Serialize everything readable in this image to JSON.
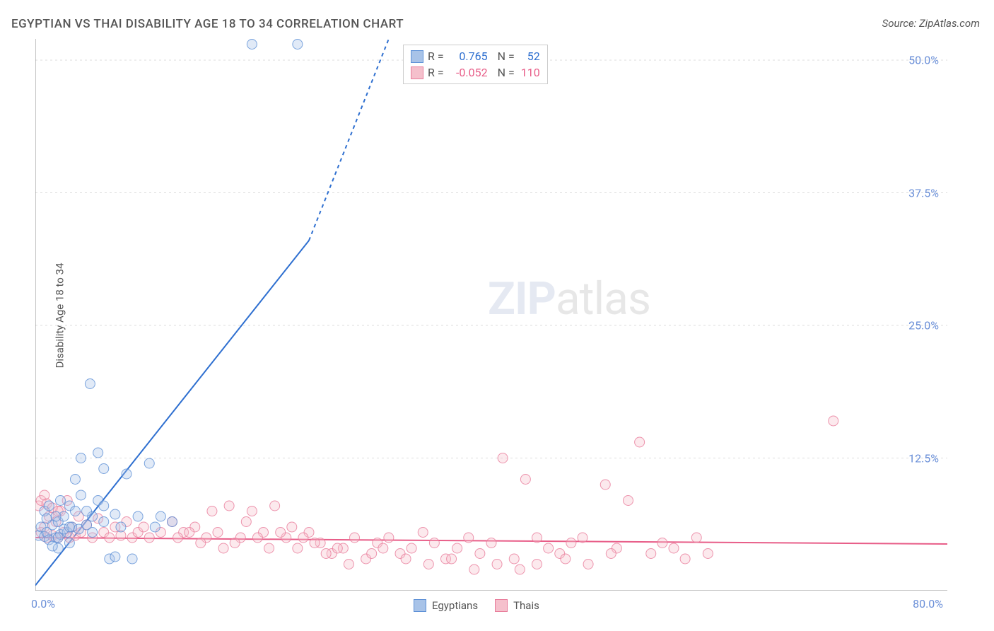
{
  "title": "EGYPTIAN VS THAI DISABILITY AGE 18 TO 34 CORRELATION CHART",
  "source": "Source: ZipAtlas.com",
  "ylabel": "Disability Age 18 to 34",
  "watermark_zip": "ZIP",
  "watermark_atlas": "atlas",
  "chart": {
    "type": "scatter",
    "xlim": [
      0,
      80
    ],
    "ylim": [
      0,
      52
    ],
    "yticks": [
      {
        "v": 12.5,
        "label": "12.5%"
      },
      {
        "v": 25.0,
        "label": "25.0%"
      },
      {
        "v": 37.5,
        "label": "37.5%"
      },
      {
        "v": 50.0,
        "label": "50.0%"
      }
    ],
    "xticks": [
      {
        "v": 0,
        "label": "0.0%"
      },
      {
        "v": 80,
        "label": "80.0%"
      }
    ],
    "xtick_minor": [
      40,
      44,
      48,
      52,
      56,
      60,
      64,
      68,
      72,
      76
    ],
    "grid_color": "#dddddd",
    "axis_color": "#888888",
    "tick_label_color": "#6a8fd8",
    "background_color": "#ffffff",
    "marker_radius": 7,
    "marker_opacity": 0.35,
    "line_width": 2,
    "series": [
      {
        "name": "Egyptians",
        "color_fill": "#a8c3e8",
        "color_stroke": "#5b8fd6",
        "line_color": "#2e6fd0",
        "r_value": "0.765",
        "n_value": "52",
        "trend": {
          "x1": 0,
          "y1": 0.5,
          "x2_solid": 24,
          "y2_solid": 33,
          "x2_dash": 31,
          "y2_dash": 52
        },
        "points": [
          [
            0.3,
            5.2
          ],
          [
            0.5,
            6.0
          ],
          [
            0.8,
            5.1
          ],
          [
            1.0,
            5.5
          ],
          [
            1.2,
            4.8
          ],
          [
            1.5,
            6.2
          ],
          [
            1.8,
            5.0
          ],
          [
            2.0,
            6.5
          ],
          [
            2.2,
            5.3
          ],
          [
            2.5,
            7.0
          ],
          [
            2.8,
            5.5
          ],
          [
            3.0,
            8.0
          ],
          [
            3.2,
            6.0
          ],
          [
            3.5,
            7.5
          ],
          [
            3.8,
            5.8
          ],
          [
            4.0,
            9.0
          ],
          [
            4.5,
            6.2
          ],
          [
            5.0,
            7.0
          ],
          [
            5.5,
            8.5
          ],
          [
            6.0,
            6.5
          ],
          [
            6.5,
            3.0
          ],
          [
            7.0,
            7.2
          ],
          [
            7.5,
            6.0
          ],
          [
            8.0,
            11.0
          ],
          [
            4.0,
            12.5
          ],
          [
            5.5,
            13.0
          ],
          [
            6.0,
            11.5
          ],
          [
            3.5,
            10.5
          ],
          [
            4.8,
            19.5
          ],
          [
            10.0,
            12.0
          ],
          [
            9.0,
            7.0
          ],
          [
            2.0,
            4.0
          ],
          [
            3.0,
            4.5
          ],
          [
            1.5,
            4.2
          ],
          [
            2.5,
            5.8
          ],
          [
            11.0,
            7.0
          ],
          [
            10.5,
            6.0
          ],
          [
            12.0,
            6.5
          ],
          [
            7.0,
            3.2
          ],
          [
            8.5,
            3.0
          ],
          [
            0.8,
            7.5
          ],
          [
            1.2,
            8.0
          ],
          [
            1.8,
            7.0
          ],
          [
            2.2,
            8.5
          ],
          [
            1.0,
            6.8
          ],
          [
            19.0,
            51.5
          ],
          [
            23.0,
            51.5
          ],
          [
            6.0,
            8.0
          ],
          [
            4.5,
            7.5
          ],
          [
            3.0,
            6.0
          ],
          [
            2.0,
            5.0
          ],
          [
            5.0,
            5.5
          ]
        ]
      },
      {
        "name": "Thais",
        "color_fill": "#f5c0cc",
        "color_stroke": "#e87b9a",
        "line_color": "#e85d88",
        "r_value": "-0.052",
        "n_value": "110",
        "trend": {
          "x1": 0,
          "y1": 5.0,
          "x2_solid": 80,
          "y2_solid": 4.4,
          "x2_dash": 80,
          "y2_dash": 4.4
        },
        "points": [
          [
            0.5,
            5.5
          ],
          [
            0.8,
            6.0
          ],
          [
            1.0,
            5.0
          ],
          [
            1.2,
            7.0
          ],
          [
            1.5,
            5.2
          ],
          [
            1.8,
            6.5
          ],
          [
            2.0,
            5.0
          ],
          [
            2.2,
            7.5
          ],
          [
            2.5,
            5.5
          ],
          [
            2.8,
            8.5
          ],
          [
            3.0,
            5.0
          ],
          [
            3.2,
            6.0
          ],
          [
            3.5,
            5.2
          ],
          [
            3.8,
            7.0
          ],
          [
            4.0,
            5.5
          ],
          [
            4.5,
            6.2
          ],
          [
            5.0,
            5.0
          ],
          [
            5.5,
            6.8
          ],
          [
            6.0,
            5.5
          ],
          [
            6.5,
            5.0
          ],
          [
            7.0,
            6.0
          ],
          [
            7.5,
            5.2
          ],
          [
            8.0,
            6.5
          ],
          [
            8.5,
            5.0
          ],
          [
            9.0,
            5.5
          ],
          [
            9.5,
            6.0
          ],
          [
            10.0,
            5.0
          ],
          [
            11.0,
            5.5
          ],
          [
            12.0,
            6.5
          ],
          [
            13.0,
            5.5
          ],
          [
            14.0,
            6.0
          ],
          [
            15.0,
            5.0
          ],
          [
            15.5,
            7.5
          ],
          [
            16.0,
            5.5
          ],
          [
            17.0,
            8.0
          ],
          [
            18.0,
            5.0
          ],
          [
            18.5,
            6.5
          ],
          [
            19.0,
            7.5
          ],
          [
            20.0,
            5.5
          ],
          [
            21.0,
            8.0
          ],
          [
            22.0,
            5.0
          ],
          [
            22.5,
            6.0
          ],
          [
            23.0,
            4.0
          ],
          [
            24.0,
            5.5
          ],
          [
            25.0,
            4.5
          ],
          [
            26.0,
            3.5
          ],
          [
            27.0,
            4.0
          ],
          [
            28.0,
            5.0
          ],
          [
            29.0,
            3.0
          ],
          [
            30.0,
            4.5
          ],
          [
            31.0,
            5.0
          ],
          [
            32.0,
            3.5
          ],
          [
            33.0,
            4.0
          ],
          [
            34.0,
            5.5
          ],
          [
            35.0,
            4.5
          ],
          [
            36.0,
            3.0
          ],
          [
            37.0,
            4.0
          ],
          [
            38.0,
            5.0
          ],
          [
            39.0,
            3.5
          ],
          [
            40.0,
            4.5
          ],
          [
            41.0,
            12.5
          ],
          [
            42.0,
            3.0
          ],
          [
            43.0,
            10.5
          ],
          [
            44.0,
            5.0
          ],
          [
            45.0,
            4.0
          ],
          [
            46.0,
            3.5
          ],
          [
            47.0,
            4.5
          ],
          [
            48.0,
            5.0
          ],
          [
            50.0,
            10.0
          ],
          [
            51.0,
            4.0
          ],
          [
            52.0,
            8.5
          ],
          [
            53.0,
            14.0
          ],
          [
            54.0,
            3.5
          ],
          [
            55.0,
            4.5
          ],
          [
            56.0,
            4.0
          ],
          [
            57.0,
            3.0
          ],
          [
            58.0,
            5.0
          ],
          [
            59.0,
            3.5
          ],
          [
            70.0,
            16.0
          ],
          [
            44.0,
            2.5
          ],
          [
            0.3,
            8.0
          ],
          [
            0.5,
            8.5
          ],
          [
            0.8,
            9.0
          ],
          [
            1.0,
            8.2
          ],
          [
            1.5,
            7.8
          ],
          [
            2.0,
            7.5
          ],
          [
            12.5,
            5.0
          ],
          [
            13.5,
            5.5
          ],
          [
            14.5,
            4.5
          ],
          [
            16.5,
            4.0
          ],
          [
            17.5,
            4.5
          ],
          [
            19.5,
            5.0
          ],
          [
            20.5,
            4.0
          ],
          [
            21.5,
            5.5
          ],
          [
            23.5,
            5.0
          ],
          [
            24.5,
            4.5
          ],
          [
            25.5,
            3.5
          ],
          [
            26.5,
            4.0
          ],
          [
            27.5,
            2.5
          ],
          [
            29.5,
            3.5
          ],
          [
            30.5,
            4.0
          ],
          [
            32.5,
            3.0
          ],
          [
            34.5,
            2.5
          ],
          [
            36.5,
            3.0
          ],
          [
            38.5,
            2.0
          ],
          [
            40.5,
            2.5
          ],
          [
            42.5,
            2.0
          ],
          [
            46.5,
            3.0
          ],
          [
            48.5,
            2.5
          ],
          [
            50.5,
            3.5
          ]
        ]
      }
    ]
  },
  "legend_stats": {
    "r_label": "R =",
    "n_label": "N ="
  },
  "legend_bottom": {
    "label1": "Egyptians",
    "label2": "Thais"
  }
}
